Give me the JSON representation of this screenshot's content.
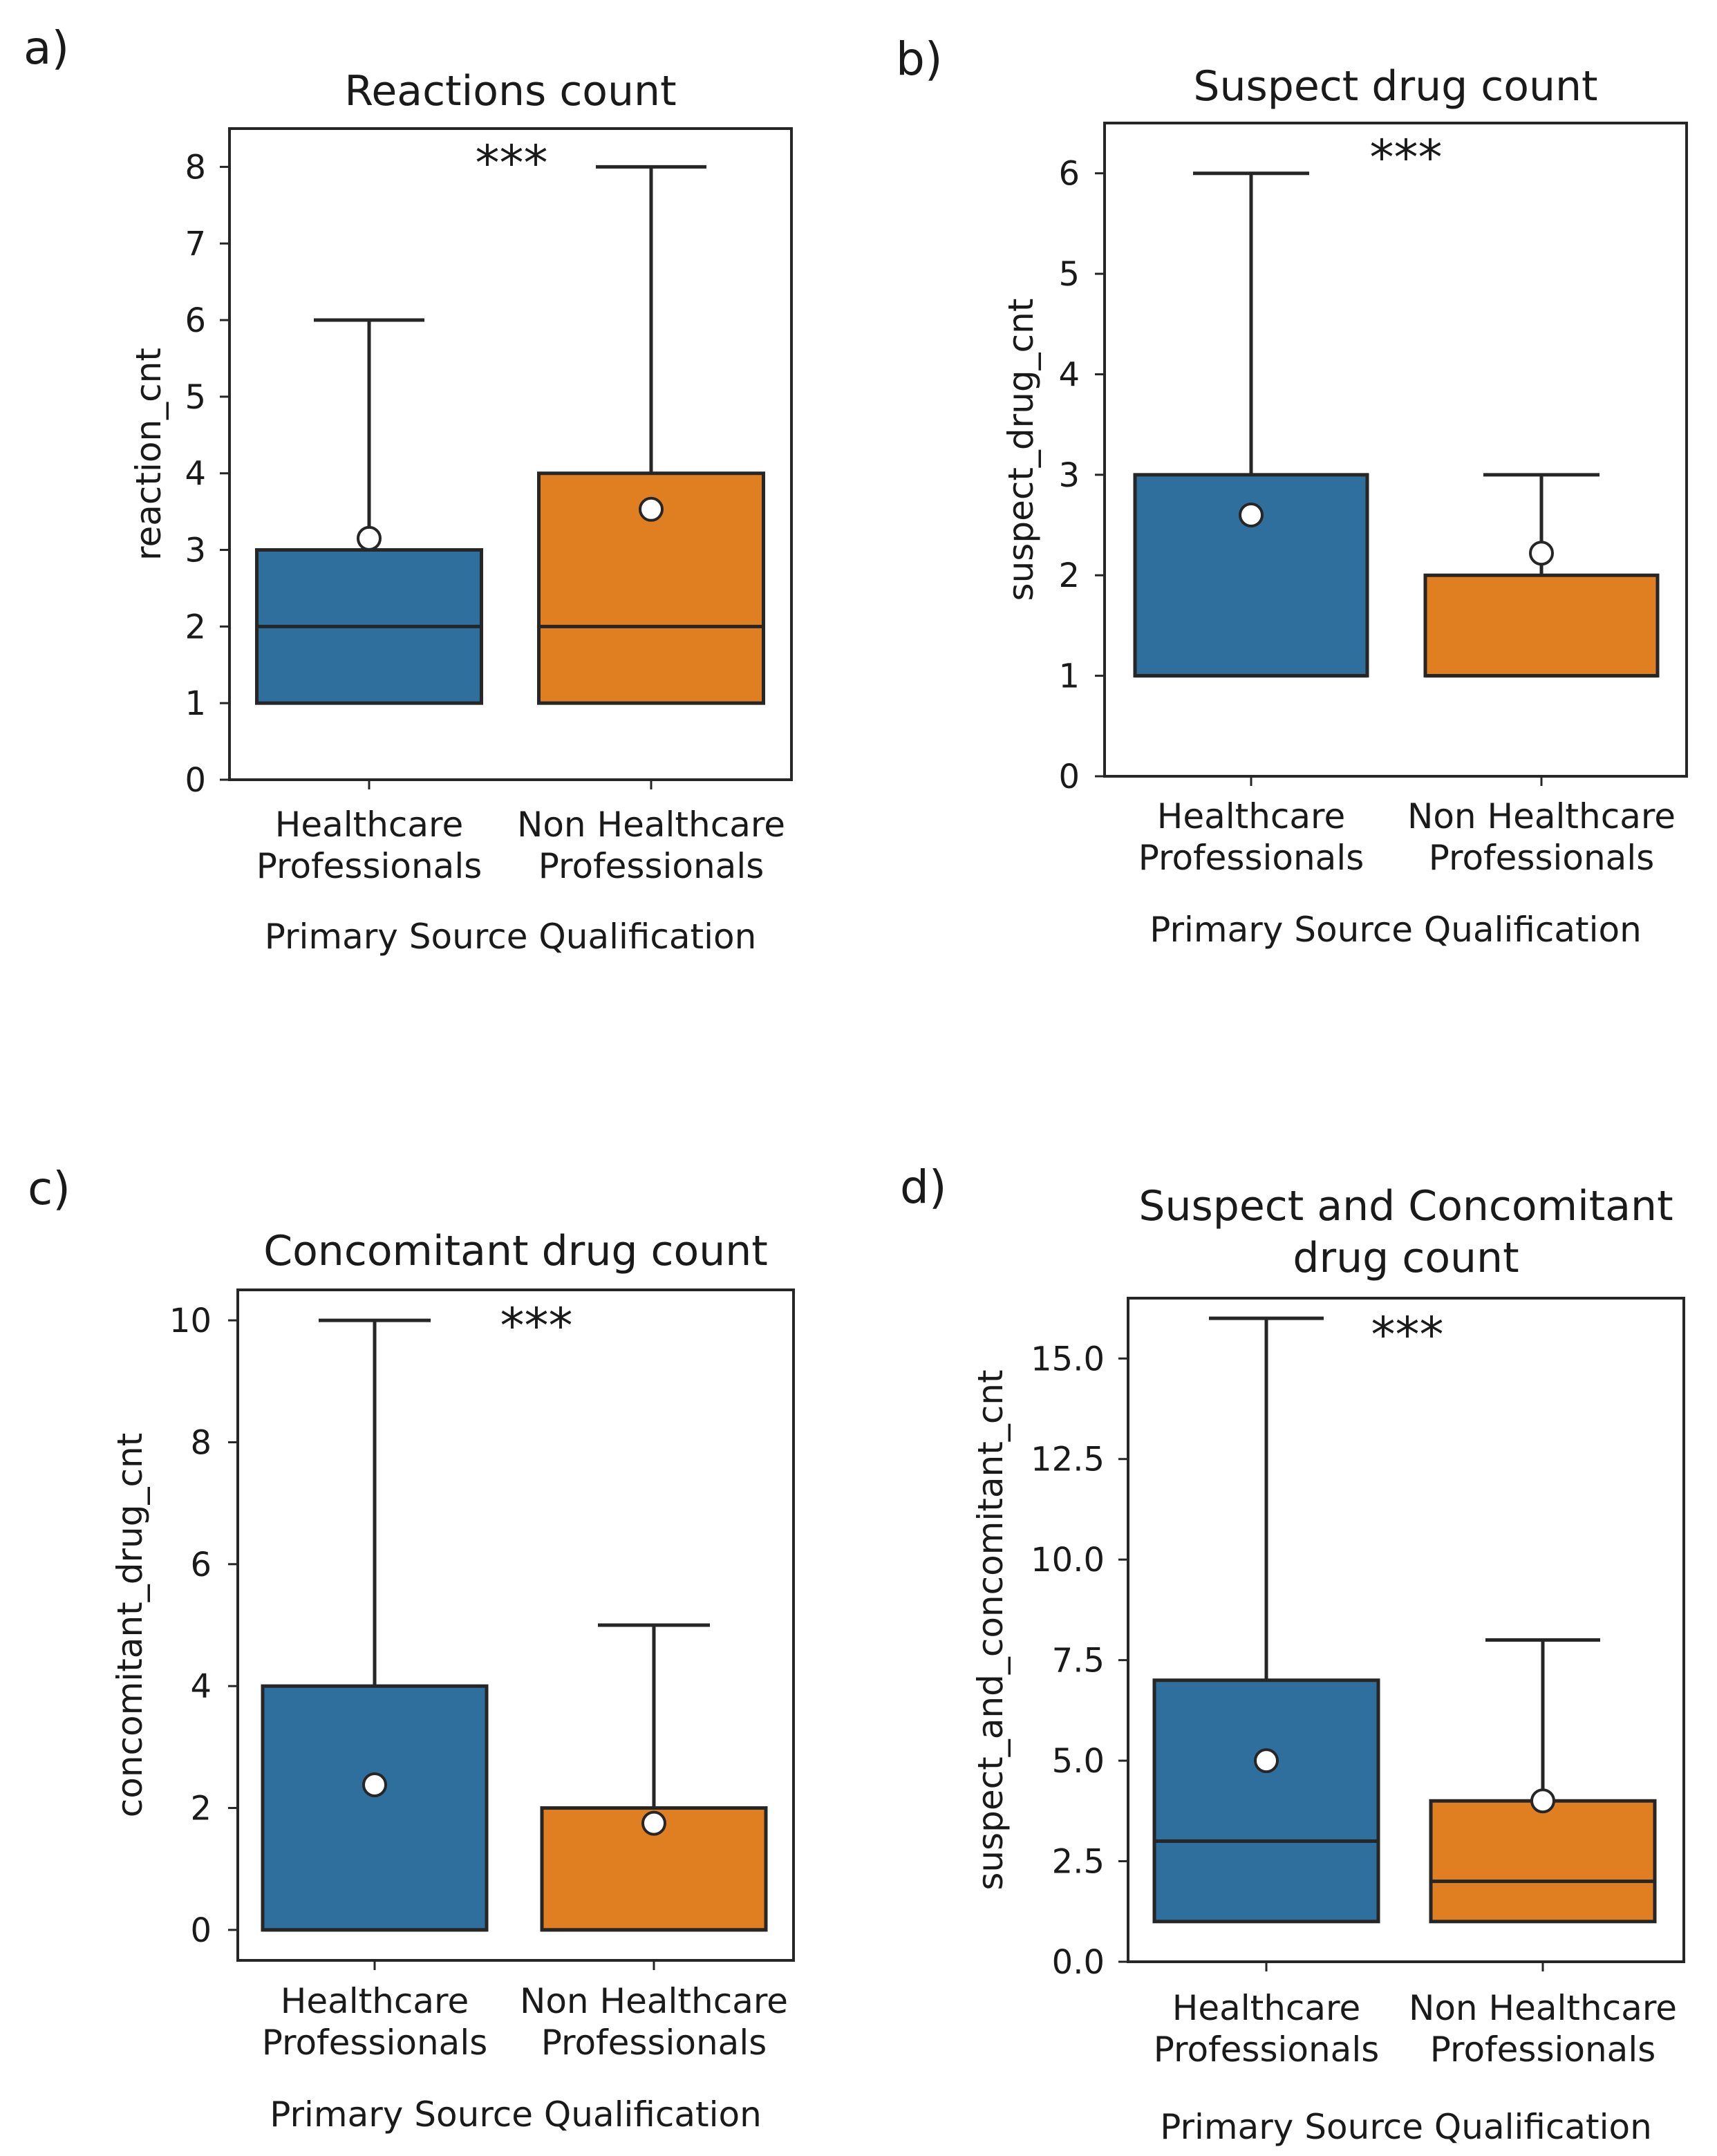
{
  "figure": {
    "background": "#ffffff",
    "ink": "#262626",
    "mean_marker_fill": "#ffffff",
    "series_colors": [
      "#2e6f9e",
      "#e07f22"
    ]
  },
  "chart_data": [
    {
      "type": "box",
      "panel": "a)",
      "title_lines": [
        "Reactions count"
      ],
      "xlabel": "Primary Source Qualification",
      "ylabel": "reaction_cnt",
      "ylim": [
        0,
        8.5
      ],
      "yticks": [
        0,
        1,
        2,
        3,
        4,
        5,
        6,
        7,
        8
      ],
      "ytick_labels": [
        "0",
        "1",
        "2",
        "3",
        "4",
        "5",
        "6",
        "7",
        "8"
      ],
      "significance": "***",
      "categories": [
        {
          "label_lines": [
            "Healthcare",
            "Professionals"
          ],
          "color": "#2e6f9e",
          "whisker_low": 1,
          "q1": 1,
          "median": 2,
          "q3": 3,
          "whisker_high": 6,
          "mean": 3.15
        },
        {
          "label_lines": [
            "Non Healthcare",
            "Professionals"
          ],
          "color": "#e07f22",
          "whisker_low": 1,
          "q1": 1,
          "median": 2,
          "q3": 4,
          "whisker_high": 8,
          "mean": 3.53
        }
      ]
    },
    {
      "type": "box",
      "panel": "b)",
      "title_lines": [
        "Suspect drug count"
      ],
      "xlabel": "Primary Source Qualification",
      "ylabel": "suspect_drug_cnt",
      "ylim": [
        0,
        6.5
      ],
      "yticks": [
        0,
        1,
        2,
        3,
        4,
        5,
        6
      ],
      "ytick_labels": [
        "0",
        "1",
        "2",
        "3",
        "4",
        "5",
        "6"
      ],
      "significance": "***",
      "categories": [
        {
          "label_lines": [
            "Healthcare",
            "Professionals"
          ],
          "color": "#2e6f9e",
          "whisker_low": 1,
          "q1": 1,
          "median": 1,
          "q3": 3,
          "whisker_high": 6,
          "mean": 2.6
        },
        {
          "label_lines": [
            "Non Healthcare",
            "Professionals"
          ],
          "color": "#e07f22",
          "whisker_low": 1,
          "q1": 1,
          "median": 1,
          "q3": 2,
          "whisker_high": 3,
          "mean": 2.22
        }
      ]
    },
    {
      "type": "box",
      "panel": "c)",
      "title_lines": [
        "Concomitant drug count"
      ],
      "xlabel": "Primary Source Qualification",
      "ylabel": "concomitant_drug_cnt",
      "ylim": [
        -0.5,
        10.5
      ],
      "yticks": [
        0,
        2,
        4,
        6,
        8,
        10
      ],
      "ytick_labels": [
        "0",
        "2",
        "4",
        "6",
        "8",
        "10"
      ],
      "significance": "***",
      "categories": [
        {
          "label_lines": [
            "Healthcare",
            "Professionals"
          ],
          "color": "#2e6f9e",
          "whisker_low": 0,
          "q1": 0,
          "median": 0,
          "q3": 4,
          "whisker_high": 10,
          "mean": 2.38
        },
        {
          "label_lines": [
            "Non Healthcare",
            "Professionals"
          ],
          "color": "#e07f22",
          "whisker_low": 0,
          "q1": 0,
          "median": 0,
          "q3": 2,
          "whisker_high": 5,
          "mean": 1.75
        }
      ]
    },
    {
      "type": "box",
      "panel": "d)",
      "title_lines": [
        "Suspect and Concomitant",
        "drug count"
      ],
      "xlabel": "Primary Source Qualification",
      "ylabel": "suspect_and_concomitant_cnt",
      "ylim": [
        0,
        16.5
      ],
      "yticks": [
        0,
        2.5,
        5,
        7.5,
        10,
        12.5,
        15
      ],
      "ytick_labels": [
        "0.0",
        "2.5",
        "5.0",
        "7.5",
        "10.0",
        "12.5",
        "15.0"
      ],
      "significance": "***",
      "categories": [
        {
          "label_lines": [
            "Healthcare",
            "Professionals"
          ],
          "color": "#2e6f9e",
          "whisker_low": 1,
          "q1": 1,
          "median": 3,
          "q3": 7,
          "whisker_high": 16,
          "mean": 5.0
        },
        {
          "label_lines": [
            "Non Healthcare",
            "Professionals"
          ],
          "color": "#e07f22",
          "whisker_low": 1,
          "q1": 1,
          "median": 2,
          "q3": 4,
          "whisker_high": 8,
          "mean": 4.0
        }
      ]
    }
  ]
}
